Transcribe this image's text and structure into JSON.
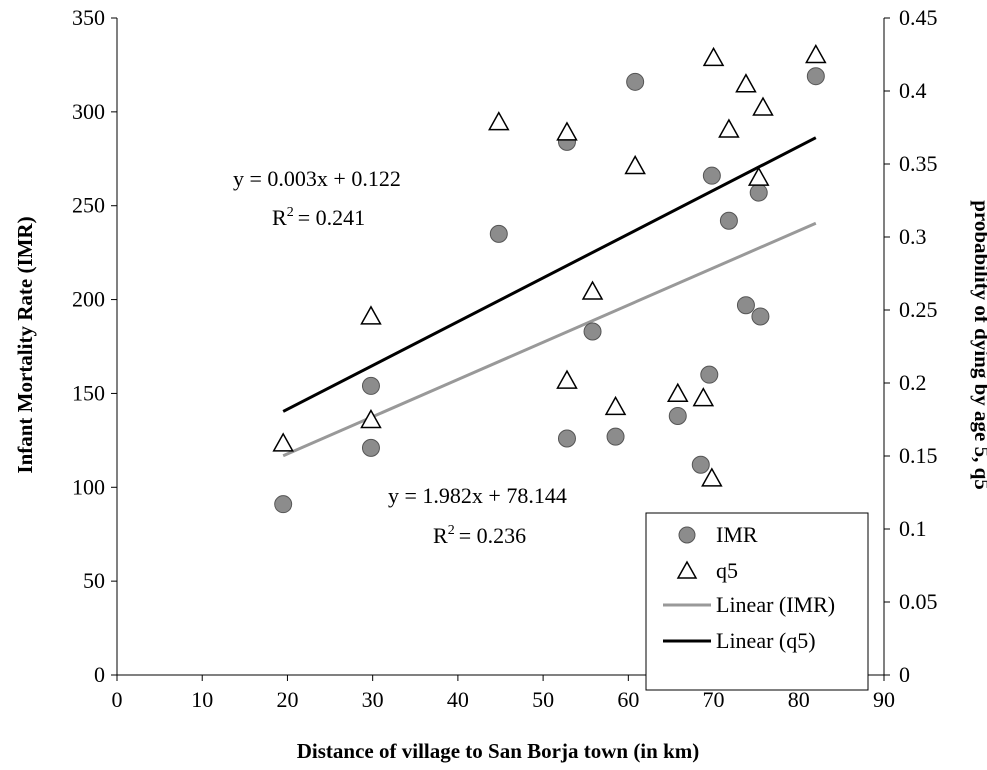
{
  "chart_data": {
    "type": "scatter",
    "xlabel": "Distance of village to San Borja town (in km)",
    "ylabel": "Infant Mortality Rate (IMR)",
    "y2label": "probability of dying by age 5, q5",
    "xlim": [
      0,
      90
    ],
    "ylim": [
      0,
      350
    ],
    "y2lim": [
      0,
      0.45
    ],
    "xticks": [
      "0",
      "10",
      "20",
      "30",
      "40",
      "50",
      "60",
      "70",
      "80",
      "90"
    ],
    "yticks": [
      "0",
      "50",
      "100",
      "150",
      "200",
      "250",
      "300",
      "350"
    ],
    "y2ticks": [
      "0",
      "0.05",
      "0.1",
      "0.15",
      "0.2",
      "0.25",
      "0.3",
      "0.35",
      "0.4",
      "0.45"
    ],
    "grid": false,
    "legend_position": "bottom-right",
    "series": [
      {
        "name": "IMR",
        "axis": "left",
        "marker": "circle",
        "color": "#8c8c8c",
        "points": [
          [
            19.5,
            91
          ],
          [
            29.8,
            154
          ],
          [
            29.8,
            121
          ],
          [
            44.8,
            235
          ],
          [
            52.8,
            284
          ],
          [
            52.8,
            126
          ],
          [
            55.8,
            183
          ],
          [
            58.5,
            127
          ],
          [
            60.8,
            316
          ],
          [
            65.8,
            138
          ],
          [
            68.5,
            112
          ],
          [
            69.5,
            160
          ],
          [
            69.8,
            266
          ],
          [
            71.8,
            242
          ],
          [
            73.8,
            197
          ],
          [
            75.3,
            257
          ],
          [
            75.5,
            191
          ],
          [
            82.0,
            319
          ]
        ]
      },
      {
        "name": "q5",
        "axis": "right",
        "marker": "triangle",
        "color": "#000000",
        "points": [
          [
            19.5,
            0.159
          ],
          [
            29.8,
            0.246
          ],
          [
            29.8,
            0.175
          ],
          [
            44.8,
            0.379
          ],
          [
            52.8,
            0.372
          ],
          [
            52.8,
            0.202
          ],
          [
            55.8,
            0.263
          ],
          [
            58.5,
            0.184
          ],
          [
            60.8,
            0.349
          ],
          [
            65.8,
            0.193
          ],
          [
            68.8,
            0.19
          ],
          [
            69.8,
            0.135
          ],
          [
            70.0,
            0.423
          ],
          [
            71.8,
            0.374
          ],
          [
            73.8,
            0.405
          ],
          [
            75.3,
            0.341
          ],
          [
            75.8,
            0.389
          ],
          [
            82.0,
            0.425
          ]
        ]
      }
    ],
    "trendlines": [
      {
        "name": "Linear (IMR)",
        "series": "IMR",
        "axis": "left",
        "color": "#999999",
        "slope": 1.982,
        "intercept": 78.144,
        "x_range": [
          19.5,
          82.0
        ]
      },
      {
        "name": "Linear (q5)",
        "series": "q5",
        "axis": "right",
        "color": "#000000",
        "slope": 0.003,
        "intercept": 0.122,
        "x_range": [
          19.5,
          82.0
        ]
      }
    ],
    "annotations": {
      "q5_equation": "y = 0.003x + 0.122",
      "q5_r2": "= 0.241",
      "imr_equation": "y = 1.982x + 78.144",
      "imr_r2": "= 0.236",
      "r2_symbol": "R",
      "r2_superscript": "2"
    },
    "legend": [
      "IMR",
      "q5",
      "Linear (IMR)",
      "Linear (q5)"
    ]
  }
}
